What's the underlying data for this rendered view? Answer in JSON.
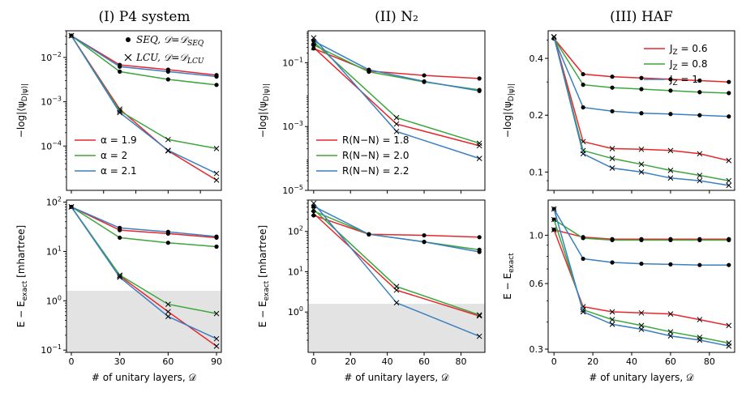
{
  "colors": {
    "red": "#e8262b",
    "green": "#3ca63c",
    "blue": "#3a7fc1",
    "shade": "#e3e3e3"
  },
  "chart_data": [
    {
      "id": "p4-top",
      "type": "line",
      "title": "(I) P4 system",
      "yscale": "log",
      "ylabel": "−log|⟨ψ_D|ψ⟩|",
      "xlabel": "",
      "xlim": [
        -3,
        93
      ],
      "ylim": [
        1e-05,
        0.04
      ],
      "xticks": [
        0,
        20,
        40,
        60,
        80
      ],
      "xticklabels": [
        "",
        "",
        "",
        "",
        ""
      ],
      "yticks": [
        0.0001,
        0.001,
        0.01
      ],
      "yticklabels": [
        "10^-4",
        "10^-3",
        "10^-2"
      ],
      "legend": {
        "position": "lower-left",
        "entries": [
          {
            "label": "α = 1.9",
            "color": "red"
          },
          {
            "label": "α = 2",
            "color": "green"
          },
          {
            "label": "α = 2.1",
            "color": "blue"
          }
        ]
      },
      "marker_legend": {
        "position": "top-right",
        "entries": [
          {
            "marker": "dot",
            "label": "SEQ, 𝒟=𝒟_SEQ"
          },
          {
            "marker": "cross",
            "label": "LCU, 𝒟=𝒟_LCU"
          }
        ]
      },
      "series": [
        {
          "name": "α = 1.9 SEQ",
          "color": "red",
          "marker": "dot",
          "x": [
            0,
            30,
            60,
            90
          ],
          "y": [
            0.031,
            0.0068,
            0.0053,
            0.004
          ]
        },
        {
          "name": "α = 2 SEQ",
          "color": "green",
          "marker": "dot",
          "x": [
            0,
            30,
            60,
            90
          ],
          "y": [
            0.031,
            0.0048,
            0.0032,
            0.0024
          ]
        },
        {
          "name": "α = 2.1 SEQ",
          "color": "blue",
          "marker": "dot",
          "x": [
            0,
            30,
            60,
            90
          ],
          "y": [
            0.031,
            0.0062,
            0.0048,
            0.0037
          ]
        },
        {
          "name": "α = 1.9 LCU",
          "color": "red",
          "marker": "cross",
          "x": [
            0,
            30,
            60,
            90
          ],
          "y": [
            0.031,
            0.00068,
            7.8e-05,
            1.7e-05
          ]
        },
        {
          "name": "α = 2 LCU",
          "color": "green",
          "marker": "cross",
          "x": [
            0,
            30,
            60,
            90
          ],
          "y": [
            0.031,
            0.00062,
            0.00014,
            8.8e-05
          ]
        },
        {
          "name": "α = 2.1 LCU",
          "color": "blue",
          "marker": "cross",
          "x": [
            0,
            30,
            60,
            90
          ],
          "y": [
            0.031,
            0.00057,
            8e-05,
            2.4e-05
          ]
        }
      ]
    },
    {
      "id": "n2-top",
      "type": "line",
      "title": "(II) N₂",
      "yscale": "log",
      "ylabel": "−log|⟨ψ_D|ψ⟩|",
      "xlabel": "",
      "xlim": [
        -3,
        93
      ],
      "ylim": [
        1e-05,
        1.0
      ],
      "xticks": [
        0,
        20,
        40,
        60,
        80
      ],
      "xticklabels": [
        "",
        "",
        "",
        "",
        ""
      ],
      "yticks": [
        1e-05,
        0.001,
        0.1
      ],
      "yticklabels": [
        "10^-5",
        "10^-3",
        "10^-1"
      ],
      "legend": {
        "position": "lower-left",
        "entries": [
          {
            "label": "R(N−N) = 1.8",
            "color": "red"
          },
          {
            "label": "R(N−N) = 2.0",
            "color": "green"
          },
          {
            "label": "R(N−N) = 2.2",
            "color": "blue"
          }
        ]
      },
      "series": [
        {
          "name": "1.8 SEQ",
          "color": "red",
          "marker": "dot",
          "x": [
            0,
            30,
            60,
            90
          ],
          "y": [
            0.28,
            0.055,
            0.04,
            0.032
          ]
        },
        {
          "name": "2.0 SEQ",
          "color": "green",
          "marker": "dot",
          "x": [
            0,
            30,
            60,
            90
          ],
          "y": [
            0.36,
            0.052,
            0.025,
            0.014
          ]
        },
        {
          "name": "2.2 SEQ",
          "color": "blue",
          "marker": "dot",
          "x": [
            0,
            30,
            60,
            90
          ],
          "y": [
            0.48,
            0.06,
            0.026,
            0.013
          ]
        },
        {
          "name": "1.8 LCU",
          "color": "red",
          "marker": "cross",
          "x": [
            0,
            45,
            90
          ],
          "y": [
            0.3,
            0.0012,
            0.00025
          ]
        },
        {
          "name": "2.0 LCU",
          "color": "green",
          "marker": "cross",
          "x": [
            0,
            45,
            90
          ],
          "y": [
            0.45,
            0.0019,
            0.0003
          ]
        },
        {
          "name": "2.2 LCU",
          "color": "blue",
          "marker": "cross",
          "x": [
            0,
            45,
            90
          ],
          "y": [
            0.6,
            0.0007,
            0.0001
          ]
        }
      ]
    },
    {
      "id": "haf-top",
      "type": "line",
      "title": "(III) HAF",
      "yscale": "log",
      "ylabel": "−log|⟨ψ_D|ψ⟩|",
      "xlabel": "",
      "xlim": [
        -3,
        93
      ],
      "ylim": [
        0.08,
        0.56
      ],
      "xticks": [
        0,
        20,
        40,
        60,
        80
      ],
      "xticklabels": [
        "",
        "",
        "",
        "",
        ""
      ],
      "yticks": [
        0.1,
        0.2,
        0.4
      ],
      "yticklabels": [
        "0.1",
        "0.2",
        "0.4"
      ],
      "legend": {
        "position": "top-right",
        "entries": [
          {
            "label": "J_Z = 0.6",
            "color": "red"
          },
          {
            "label": "J_Z = 0.8",
            "color": "green"
          },
          {
            "label": "J_Z = 1",
            "color": "blue"
          }
        ]
      },
      "series": [
        {
          "name": "0.6 SEQ",
          "color": "red",
          "marker": "dot",
          "x": [
            0,
            15,
            30,
            45,
            60,
            75,
            90
          ],
          "y": [
            0.51,
            0.33,
            0.32,
            0.315,
            0.31,
            0.305,
            0.3
          ]
        },
        {
          "name": "0.8 SEQ",
          "color": "green",
          "marker": "dot",
          "x": [
            0,
            15,
            30,
            45,
            60,
            75,
            90
          ],
          "y": [
            0.51,
            0.29,
            0.28,
            0.275,
            0.27,
            0.265,
            0.262
          ]
        },
        {
          "name": "1 SEQ",
          "color": "blue",
          "marker": "dot",
          "x": [
            0,
            15,
            30,
            45,
            60,
            75,
            90
          ],
          "y": [
            0.51,
            0.22,
            0.21,
            0.205,
            0.203,
            0.2,
            0.197
          ]
        },
        {
          "name": "0.6 LCU",
          "color": "red",
          "marker": "cross",
          "x": [
            0,
            15,
            30,
            45,
            60,
            75,
            90
          ],
          "y": [
            0.52,
            0.145,
            0.133,
            0.132,
            0.13,
            0.125,
            0.115
          ]
        },
        {
          "name": "0.8 LCU",
          "color": "green",
          "marker": "cross",
          "x": [
            0,
            15,
            30,
            45,
            60,
            75,
            90
          ],
          "y": [
            0.52,
            0.13,
            0.118,
            0.11,
            0.102,
            0.096,
            0.09
          ]
        },
        {
          "name": "1 LCU",
          "color": "blue",
          "marker": "cross",
          "x": [
            0,
            15,
            30,
            45,
            60,
            75,
            90
          ],
          "y": [
            0.52,
            0.125,
            0.105,
            0.1,
            0.093,
            0.09,
            0.085
          ]
        }
      ]
    },
    {
      "id": "p4-bottom",
      "type": "line",
      "title": "",
      "yscale": "log",
      "ylabel": "E − E_exact [mhartree]",
      "xlabel": "# of unitary layers, 𝒟",
      "xlim": [
        -3,
        93
      ],
      "ylim": [
        0.09,
        110
      ],
      "shade_below": 1.6,
      "xticks": [
        0,
        30,
        60,
        90
      ],
      "xticklabels": [
        "0",
        "30",
        "60",
        "90"
      ],
      "yticks": [
        0.1,
        1,
        10,
        100
      ],
      "yticklabels": [
        "10^-1",
        "10^0",
        "10^1",
        "10^2"
      ],
      "series": [
        {
          "name": "α = 1.9 SEQ",
          "color": "red",
          "marker": "dot",
          "x": [
            0,
            30,
            60,
            90
          ],
          "y": [
            80,
            27,
            23,
            19
          ]
        },
        {
          "name": "α = 2 SEQ",
          "color": "green",
          "marker": "dot",
          "x": [
            0,
            30,
            60,
            90
          ],
          "y": [
            80,
            19,
            15,
            12.5
          ]
        },
        {
          "name": "α = 2.1 SEQ",
          "color": "blue",
          "marker": "dot",
          "x": [
            0,
            30,
            60,
            90
          ],
          "y": [
            80,
            30,
            25,
            20
          ]
        },
        {
          "name": "α = 1.9 LCU",
          "color": "red",
          "marker": "cross",
          "x": [
            0,
            30,
            60,
            90
          ],
          "y": [
            80,
            3.2,
            0.6,
            0.12
          ]
        },
        {
          "name": "α = 2 LCU",
          "color": "green",
          "marker": "cross",
          "x": [
            0,
            30,
            60,
            90
          ],
          "y": [
            80,
            3.3,
            0.85,
            0.55
          ]
        },
        {
          "name": "α = 2.1 LCU",
          "color": "blue",
          "marker": "cross",
          "x": [
            0,
            30,
            60,
            90
          ],
          "y": [
            80,
            3.0,
            0.48,
            0.17
          ]
        }
      ]
    },
    {
      "id": "n2-bottom",
      "type": "line",
      "title": "",
      "yscale": "log",
      "ylabel": "E − E_exact [mhartree]",
      "xlabel": "# of unitary layers, 𝒟",
      "xlim": [
        -3,
        93
      ],
      "ylim": [
        0.1,
        600
      ],
      "shade_below": 1.6,
      "xticks": [
        0,
        20,
        40,
        60,
        80
      ],
      "xticklabels": [
        "0",
        "20",
        "40",
        "60",
        "80"
      ],
      "yticks": [
        1,
        10,
        100
      ],
      "yticklabels": [
        "10^0",
        "10^1",
        "10^2"
      ],
      "series": [
        {
          "name": "1.8 SEQ",
          "color": "red",
          "marker": "dot",
          "x": [
            0,
            30,
            60,
            90
          ],
          "y": [
            250,
            85,
            80,
            72
          ]
        },
        {
          "name": "2.0 SEQ",
          "color": "green",
          "marker": "dot",
          "x": [
            0,
            30,
            60,
            90
          ],
          "y": [
            320,
            85,
            55,
            35
          ]
        },
        {
          "name": "2.2 SEQ",
          "color": "blue",
          "marker": "dot",
          "x": [
            0,
            30,
            60,
            90
          ],
          "y": [
            420,
            85,
            55,
            31
          ]
        },
        {
          "name": "1.8 LCU",
          "color": "red",
          "marker": "cross",
          "x": [
            0,
            45,
            90
          ],
          "y": [
            280,
            3.5,
            0.8
          ]
        },
        {
          "name": "2.0 LCU",
          "color": "green",
          "marker": "cross",
          "x": [
            0,
            45,
            90
          ],
          "y": [
            350,
            4.3,
            0.85
          ]
        },
        {
          "name": "2.2 LCU",
          "color": "blue",
          "marker": "cross",
          "x": [
            0,
            45,
            90
          ],
          "y": [
            500,
            1.7,
            0.25
          ]
        }
      ]
    },
    {
      "id": "haf-bottom",
      "type": "line",
      "title": "",
      "yscale": "log",
      "ylabel": "E − E_exact",
      "xlabel": "# of unitary layers, 𝒟",
      "xlim": [
        -3,
        93
      ],
      "ylim": [
        0.29,
        1.45
      ],
      "xticks": [
        0,
        20,
        40,
        60,
        80
      ],
      "xticklabels": [
        "0",
        "20",
        "40",
        "60",
        "80"
      ],
      "yticks": [
        0.3,
        0.6,
        1.0
      ],
      "yticklabels": [
        "0.3",
        "0.6",
        "1.0"
      ],
      "series": [
        {
          "name": "0.6 SEQ",
          "color": "red",
          "marker": "dot",
          "x": [
            0,
            15,
            30,
            45,
            60,
            75,
            90
          ],
          "y": [
            1.06,
            0.98,
            0.96,
            0.96,
            0.96,
            0.96,
            0.96
          ]
        },
        {
          "name": "0.8 SEQ",
          "color": "green",
          "marker": "dot",
          "x": [
            0,
            15,
            30,
            45,
            60,
            75,
            90
          ],
          "y": [
            1.18,
            0.97,
            0.95,
            0.95,
            0.95,
            0.95,
            0.95
          ]
        },
        {
          "name": "1 SEQ",
          "color": "blue",
          "marker": "dot",
          "x": [
            0,
            15,
            30,
            45,
            60,
            75,
            90
          ],
          "y": [
            1.32,
            0.78,
            0.75,
            0.74,
            0.735,
            0.73,
            0.73
          ]
        },
        {
          "name": "0.6 LCU",
          "color": "red",
          "marker": "cross",
          "x": [
            0,
            15,
            30,
            45,
            60,
            75,
            90
          ],
          "y": [
            1.06,
            0.47,
            0.445,
            0.44,
            0.435,
            0.41,
            0.385
          ]
        },
        {
          "name": "0.8 LCU",
          "color": "green",
          "marker": "cross",
          "x": [
            0,
            15,
            30,
            45,
            60,
            75,
            90
          ],
          "y": [
            1.18,
            0.455,
            0.41,
            0.385,
            0.36,
            0.34,
            0.32
          ]
        },
        {
          "name": "1 LCU",
          "color": "blue",
          "marker": "cross",
          "x": [
            0,
            15,
            30,
            45,
            60,
            75,
            90
          ],
          "y": [
            1.32,
            0.445,
            0.39,
            0.37,
            0.345,
            0.33,
            0.31
          ]
        }
      ]
    }
  ]
}
